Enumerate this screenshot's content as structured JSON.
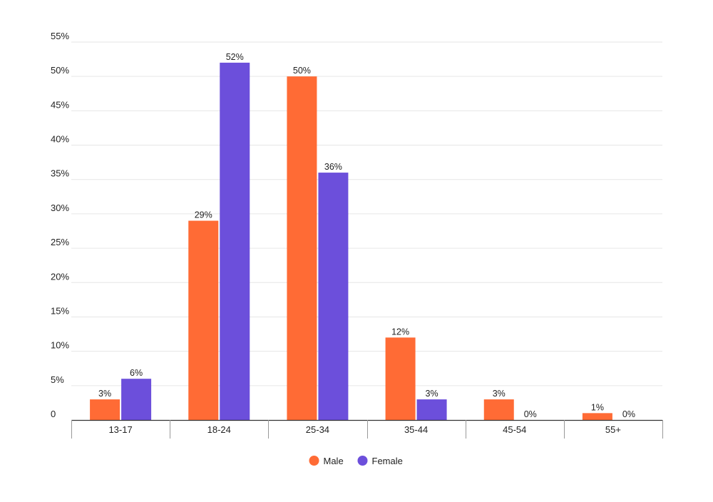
{
  "chart_data": {
    "type": "bar",
    "title": "",
    "xlabel": "",
    "ylabel": "",
    "ylim": [
      0,
      55
    ],
    "yticks": [
      0,
      5,
      10,
      15,
      20,
      25,
      30,
      35,
      40,
      45,
      50,
      55
    ],
    "ytick_labels": [
      "0",
      "5%",
      "10%",
      "15%",
      "20%",
      "25%",
      "30%",
      "35%",
      "40%",
      "45%",
      "50%",
      "55%"
    ],
    "categories": [
      "13-17",
      "18-24",
      "25-34",
      "35-44",
      "45-54",
      "55+"
    ],
    "series": [
      {
        "name": "Male",
        "color": "#ff6b35",
        "values": [
          3,
          29,
          50,
          12,
          3,
          1
        ],
        "labels": [
          "3%",
          "29%",
          "50%",
          "12%",
          "3%",
          "1%"
        ]
      },
      {
        "name": "Female",
        "color": "#6c4fdb",
        "values": [
          6,
          52,
          36,
          3,
          0,
          0
        ],
        "labels": [
          "6%",
          "52%",
          "36%",
          "3%",
          "0%",
          "0%"
        ]
      }
    ],
    "grid": true,
    "legend": "bottom-center"
  }
}
